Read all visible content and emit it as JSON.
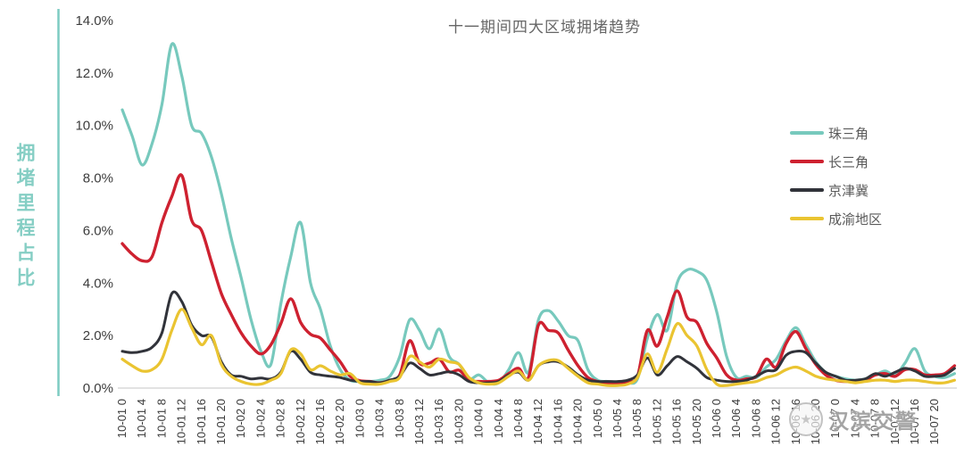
{
  "title": "十一期间四大区域拥堵趋势",
  "y_axis": {
    "label": "拥堵里程占比",
    "ticks": [
      "14.0%",
      "12.0%",
      "10.0%",
      "8.0%",
      "6.0%",
      "4.0%",
      "2.0%",
      "0.0%"
    ],
    "tick_values": [
      14,
      12,
      10,
      8,
      6,
      4,
      2,
      0
    ]
  },
  "x_axis": {
    "tick_hours": [
      0,
      4,
      8,
      12,
      16,
      20,
      24,
      28,
      32,
      36,
      40,
      44,
      48,
      52,
      56,
      60,
      64,
      68,
      72,
      76,
      80,
      84,
      88,
      92,
      96,
      100,
      104,
      108,
      112,
      116,
      120,
      124,
      128,
      132,
      136,
      140,
      144,
      148,
      152,
      156,
      160,
      164
    ],
    "tick_labels": [
      "10-01 0",
      "10-01 4",
      "10-01 8",
      "10-01 12",
      "10-01 16",
      "10-01 20",
      "10-02 0",
      "10-02 4",
      "10-02 8",
      "10-02 12",
      "10-02 16",
      "10-02 20",
      "10-03 0",
      "10-03 4",
      "10-03 8",
      "10-03 12",
      "10-03 16",
      "10-03 20",
      "10-04 0",
      "10-04 4",
      "10-04 8",
      "10-04 12",
      "10-04 16",
      "10-04 20",
      "10-05 0",
      "10-05 4",
      "10-05 8",
      "10-05 12",
      "10-05 16",
      "10-05 20",
      "10-06 0",
      "10-06 4",
      "10-06 8",
      "10-06 12",
      "10-06 16",
      "10-06 20",
      "10-07 0",
      "10-07 4",
      "10-07 8",
      "10-07 12",
      "10-07 16",
      "10-07 20"
    ]
  },
  "legend": [
    {
      "label": "珠三角",
      "color": "#77c9bd"
    },
    {
      "label": "长三角",
      "color": "#ce2130"
    },
    {
      "label": "京津冀",
      "color": "#31333a"
    },
    {
      "label": "成渝地区",
      "color": "#eac431"
    }
  ],
  "watermark": {
    "text": "汉滨交警",
    "badge_icon": "police-badge"
  },
  "colors": {
    "axis_line": "#7dccc2",
    "baseline": "#d9d9d9",
    "tick_text": "#3c3c3c",
    "title_text": "#666666",
    "y_label_text": "#85cec4"
  },
  "chart_data": {
    "type": "line",
    "title": "十一期间四大区域拥堵趋势",
    "ylabel": "拥堵里程占比",
    "unit": "%",
    "ylim": [
      0,
      14
    ],
    "grid": false,
    "legend_position": "right",
    "x_unit": "hours since 10-01 00:00",
    "x_start_hour": 0,
    "x_step_hours": 2,
    "x_end_hour": 168,
    "series": [
      {
        "name": "珠三角",
        "color": "#77c9bd",
        "values": [
          10.6,
          9.6,
          8.5,
          9.3,
          10.8,
          13.1,
          11.9,
          10.0,
          9.7,
          8.8,
          7.4,
          5.7,
          4.2,
          2.6,
          1.4,
          0.9,
          3.2,
          5.0,
          6.3,
          4.0,
          3.0,
          1.6,
          0.7,
          0.3,
          0.25,
          0.25,
          0.3,
          0.45,
          1.2,
          2.6,
          2.2,
          1.5,
          2.25,
          1.2,
          0.9,
          0.35,
          0.5,
          0.2,
          0.2,
          0.7,
          1.35,
          0.6,
          2.6,
          2.95,
          2.55,
          2.0,
          1.8,
          0.7,
          0.3,
          0.25,
          0.2,
          0.2,
          0.35,
          1.9,
          2.8,
          2.2,
          4.0,
          4.5,
          4.45,
          4.1,
          2.9,
          1.2,
          0.4,
          0.45,
          0.4,
          0.8,
          1.1,
          1.8,
          2.3,
          1.65,
          1.0,
          0.6,
          0.45,
          0.35,
          0.3,
          0.35,
          0.5,
          0.65,
          0.5,
          0.95,
          1.5,
          0.65,
          0.45,
          0.4,
          0.55
        ]
      },
      {
        "name": "长三角",
        "color": "#ce2130",
        "values": [
          5.5,
          5.1,
          4.85,
          5.0,
          6.3,
          7.3,
          8.1,
          6.4,
          6.0,
          4.8,
          3.6,
          2.8,
          2.1,
          1.6,
          1.3,
          1.65,
          2.45,
          3.4,
          2.5,
          2.05,
          1.9,
          1.45,
          1.0,
          0.45,
          0.28,
          0.25,
          0.2,
          0.3,
          0.5,
          1.8,
          0.95,
          0.95,
          1.1,
          0.62,
          0.68,
          0.3,
          0.25,
          0.25,
          0.3,
          0.55,
          0.75,
          0.4,
          2.4,
          2.2,
          2.1,
          1.45,
          0.85,
          0.4,
          0.25,
          0.2,
          0.2,
          0.25,
          0.45,
          2.2,
          1.6,
          2.7,
          3.7,
          2.7,
          2.5,
          1.7,
          1.15,
          0.5,
          0.3,
          0.35,
          0.45,
          1.1,
          0.8,
          1.7,
          2.15,
          1.5,
          0.9,
          0.5,
          0.3,
          0.25,
          0.25,
          0.3,
          0.5,
          0.55,
          0.45,
          0.7,
          0.7,
          0.5,
          0.5,
          0.55,
          0.85
        ]
      },
      {
        "name": "京津冀",
        "color": "#31333a",
        "values": [
          1.4,
          1.35,
          1.4,
          1.55,
          2.1,
          3.6,
          3.3,
          2.4,
          2.0,
          1.95,
          1.0,
          0.5,
          0.45,
          0.35,
          0.38,
          0.35,
          0.6,
          1.4,
          1.1,
          0.6,
          0.5,
          0.45,
          0.4,
          0.3,
          0.25,
          0.25,
          0.2,
          0.3,
          0.45,
          0.95,
          0.75,
          0.5,
          0.55,
          0.62,
          0.5,
          0.25,
          0.2,
          0.2,
          0.25,
          0.5,
          0.6,
          0.3,
          0.85,
          1.0,
          1.0,
          0.8,
          0.5,
          0.3,
          0.25,
          0.25,
          0.25,
          0.3,
          0.5,
          1.15,
          0.5,
          0.85,
          1.2,
          1.0,
          0.75,
          0.4,
          0.3,
          0.25,
          0.25,
          0.3,
          0.45,
          0.65,
          0.7,
          1.25,
          1.4,
          1.35,
          0.95,
          0.6,
          0.45,
          0.3,
          0.3,
          0.35,
          0.55,
          0.45,
          0.6,
          0.75,
          0.65,
          0.45,
          0.45,
          0.5,
          0.75
        ]
      },
      {
        "name": "成渝地区",
        "color": "#eac431",
        "values": [
          1.1,
          0.85,
          0.65,
          0.7,
          1.1,
          2.2,
          3.0,
          2.3,
          1.65,
          2.0,
          0.9,
          0.45,
          0.25,
          0.15,
          0.15,
          0.3,
          0.55,
          1.45,
          1.3,
          0.7,
          0.85,
          0.65,
          0.5,
          0.55,
          0.2,
          0.15,
          0.15,
          0.25,
          0.4,
          1.2,
          1.0,
          0.8,
          1.1,
          1.0,
          0.9,
          0.4,
          0.2,
          0.15,
          0.2,
          0.45,
          0.65,
          0.3,
          0.85,
          1.05,
          1.05,
          0.75,
          0.45,
          0.2,
          0.15,
          0.1,
          0.1,
          0.15,
          0.4,
          1.3,
          0.6,
          1.5,
          2.45,
          2.0,
          1.6,
          0.7,
          0.15,
          0.1,
          0.15,
          0.2,
          0.25,
          0.4,
          0.5,
          0.7,
          0.8,
          0.65,
          0.45,
          0.35,
          0.3,
          0.25,
          0.2,
          0.25,
          0.3,
          0.3,
          0.25,
          0.3,
          0.3,
          0.25,
          0.2,
          0.2,
          0.3
        ]
      }
    ]
  }
}
